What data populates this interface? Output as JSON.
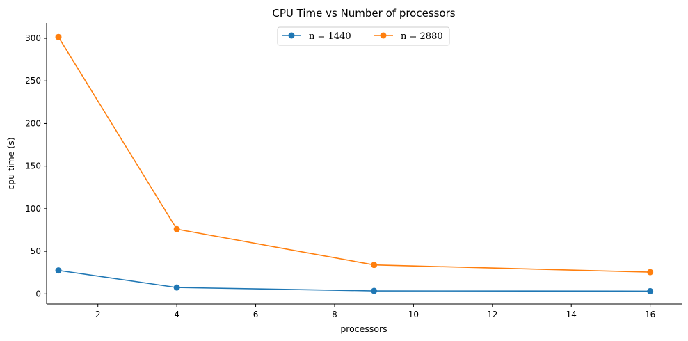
{
  "chart_data": {
    "type": "line",
    "title": "CPU Time vs Number of processors",
    "xlabel": "processors",
    "ylabel": "cpu time (s)",
    "x": [
      1,
      4,
      9,
      16
    ],
    "xlim": [
      0.7,
      16.8
    ],
    "ylim": [
      -12,
      318
    ],
    "xticks": [
      2,
      4,
      6,
      8,
      10,
      12,
      14,
      16
    ],
    "yticks": [
      0,
      50,
      100,
      150,
      200,
      250,
      300
    ],
    "grid": false,
    "legend": {
      "placement": "upper center",
      "columns": 2
    },
    "series": [
      {
        "name": "n = 1440",
        "values": [
          27.5,
          7.5,
          3.5,
          3.2
        ],
        "color": "#1f77b4",
        "marker": "circle"
      },
      {
        "name": "n = 2880",
        "values": [
          301.5,
          76,
          34,
          25.5
        ],
        "color": "#ff7f0e",
        "marker": "circle"
      }
    ]
  }
}
